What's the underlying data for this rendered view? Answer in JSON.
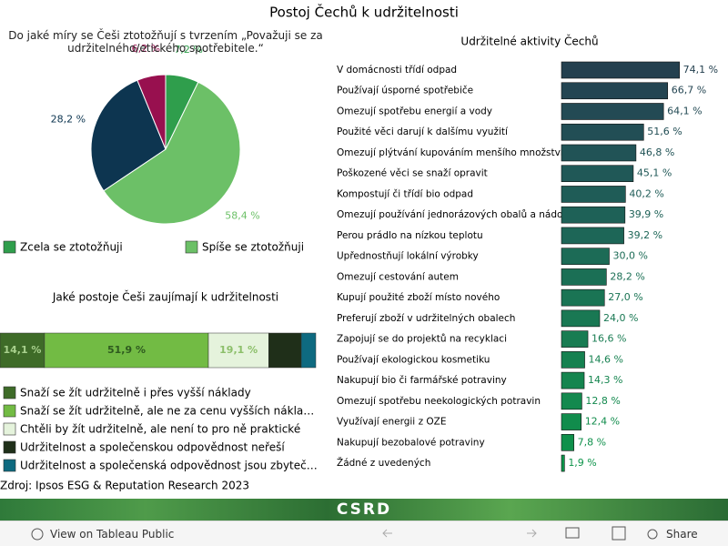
{
  "title": "Postoj Čechů k udržitelnosti",
  "source": "Zdroj: Ipsos ESG & Reputation Research 2023",
  "logo": "CSRD",
  "toolbar": {
    "view": "View on Tableau Public",
    "share": "Share"
  },
  "chart_data": [
    {
      "type": "pie",
      "title": "Do jaké míry se Češi ztotožňují s tvrzením „Považuji se za udržitelného/etického spotřebitele.“",
      "categories": [
        "Zcela se ztotožňuji",
        "Spíše se ztotožňuji",
        null,
        null
      ],
      "values": [
        7.2,
        58.4,
        28.2,
        6.2
      ],
      "value_labels": [
        "7,2 %",
        "58,4 %",
        "28,2 %",
        "6,2 %"
      ],
      "colors": [
        "#2f9e4c",
        "#6cc067",
        "#0d3550",
        "#98104f"
      ]
    },
    {
      "type": "stacked-bar",
      "title": "Jaké postoje Češi zaujímají k udržitelnosti",
      "xlim": [
        0,
        100
      ],
      "series": [
        {
          "name": "Snaží se žít udržitelně i přes vyšší náklady",
          "color": "#3e6b28",
          "values": [
            14.1
          ],
          "value_labels": [
            "14,1 %"
          ]
        },
        {
          "name": "Snaží se žít udržitelně, ale ne za cenu vyšších nákla…",
          "color": "#72bb44",
          "values": [
            51.9
          ],
          "value_labels": [
            "51,9 %"
          ]
        },
        {
          "name": "Chtěli by žít udržitelně, ale není to pro ně praktické",
          "color": "#e5f3dc",
          "values": [
            19.1
          ],
          "value_labels": [
            "19,1 %"
          ]
        },
        {
          "name": "Udržitelnost a společenskou odpovědnost neřeší",
          "color": "#1f2f19",
          "values": [
            10.3
          ]
        },
        {
          "name": "Udržitelnost a společenská odpovědnost jsou zbyteč…",
          "color": "#0e6a80",
          "values": [
            4.6
          ]
        }
      ]
    },
    {
      "type": "hbar",
      "title": "Udržitelné aktivity Čechů",
      "xlim": [
        0,
        100
      ],
      "categories": [
        "V domácnosti třídí odpad",
        "Používají úsporné spotřebiče",
        "Omezují spotřebu energií a vody",
        "Použité věci darují k dalšímu využití",
        "Omezují plýtvání kupováním menšího množství",
        "Poškozené věci se snaží opravit",
        "Kompostují či třídí bio odpad",
        "Omezují používání jednorázových obalů a nádobí",
        "Perou prádlo na nízkou teplotu",
        "Upřednostňují lokální výrobky",
        "Omezují cestování autem",
        "Kupují použité zboží místo nového",
        "Preferují zboží v udržitelných obalech",
        "Zapojují se do projektů na recyklaci",
        "Používají ekologickou kosmetiku",
        "Nakupují bio či farmářské potraviny",
        "Omezují spotřebu neekologických potravin",
        "Využívají energii z OZE",
        "Nakupují bezobalové potraviny",
        "Žádné z uvedených"
      ],
      "values": [
        74.1,
        66.7,
        64.1,
        51.6,
        46.8,
        45.1,
        40.2,
        39.9,
        39.2,
        30.0,
        28.2,
        27.0,
        24.0,
        16.6,
        14.6,
        14.3,
        12.8,
        12.4,
        7.8,
        1.9
      ],
      "value_labels": [
        "74,1 %",
        "66,7 %",
        "64,1 %",
        "51,6 %",
        "46,8 %",
        "45,1 %",
        "40,2 %",
        "39,9 %",
        "39,2 %",
        "30,0 %",
        "28,2 %",
        "27,0 %",
        "24,0 %",
        "16,6 %",
        "14,6 %",
        "14,3 %",
        "12,8 %",
        "12,4 %",
        "7,8 %",
        "1,9 %"
      ],
      "colors": [
        "#24404f",
        "#244552",
        "#234a54",
        "#224e55",
        "#215356",
        "#205857",
        "#1f5c57",
        "#1e6157",
        "#1d6657",
        "#1c6b56",
        "#1b6f55",
        "#1a7454",
        "#197853",
        "#187c52",
        "#168150",
        "#15854f",
        "#13894e",
        "#118c4c",
        "#0f904b",
        "#0d944a"
      ]
    }
  ]
}
